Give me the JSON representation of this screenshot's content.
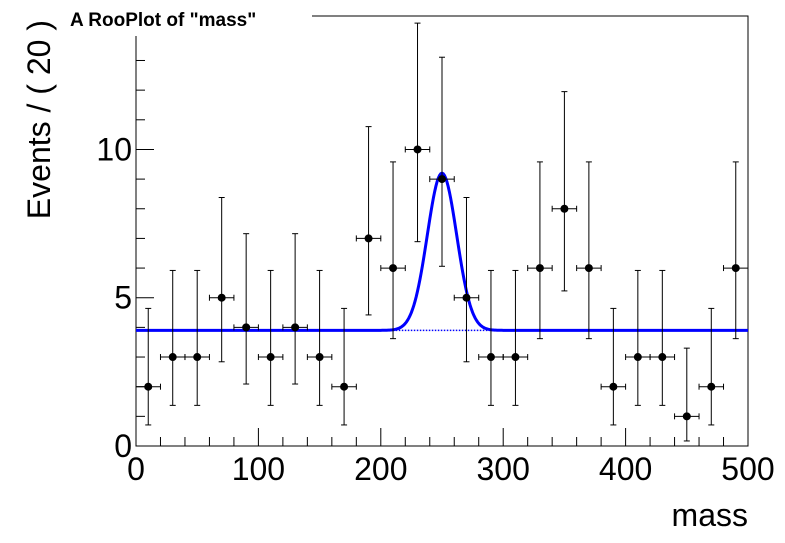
{
  "chart_data": {
    "type": "scatter",
    "title": "A RooPlot of \"mass\"",
    "xlabel": "mass",
    "ylabel": "Events / ( 20 )",
    "xlim": [
      0,
      500
    ],
    "ylim": [
      0,
      14.5
    ],
    "x_ticks": [
      0,
      100,
      200,
      300,
      400,
      500
    ],
    "y_ticks": [
      0,
      5,
      10
    ],
    "bin_width": 20,
    "grid": false,
    "series": [
      {
        "kind": "data",
        "x": [
          10,
          30,
          50,
          70,
          90,
          110,
          130,
          150,
          170,
          190,
          210,
          230,
          250,
          270,
          290,
          310,
          330,
          350,
          370,
          390,
          410,
          430,
          450,
          470,
          490
        ],
        "y": [
          2,
          3,
          3,
          5,
          4,
          3,
          4,
          3,
          2,
          7,
          6,
          10,
          9,
          5,
          3,
          3,
          6,
          8,
          6,
          2,
          3,
          3,
          1,
          2,
          6
        ],
        "err_low": [
          1.29,
          1.63,
          1.63,
          2.16,
          1.91,
          1.63,
          1.91,
          1.63,
          1.29,
          2.58,
          2.38,
          3.11,
          2.94,
          2.16,
          1.63,
          1.63,
          2.38,
          2.77,
          2.38,
          1.29,
          1.63,
          1.63,
          0.83,
          1.29,
          2.38
        ],
        "err_high": [
          2.64,
          2.92,
          2.92,
          3.38,
          3.16,
          2.92,
          3.16,
          2.92,
          2.64,
          3.77,
          3.58,
          4.26,
          4.11,
          3.38,
          2.92,
          2.92,
          3.58,
          3.95,
          3.58,
          2.64,
          2.92,
          2.92,
          2.3,
          2.64,
          3.58
        ]
      },
      {
        "kind": "fit",
        "color": "#0000ff",
        "model": "gauss+flat",
        "baseline": 3.9,
        "peak_amplitude": 5.3,
        "peak_mean": 250,
        "peak_sigma": 12
      }
    ],
    "colors": {
      "data": "#000000",
      "fit": "#0000ff",
      "axis": "#000000"
    }
  }
}
